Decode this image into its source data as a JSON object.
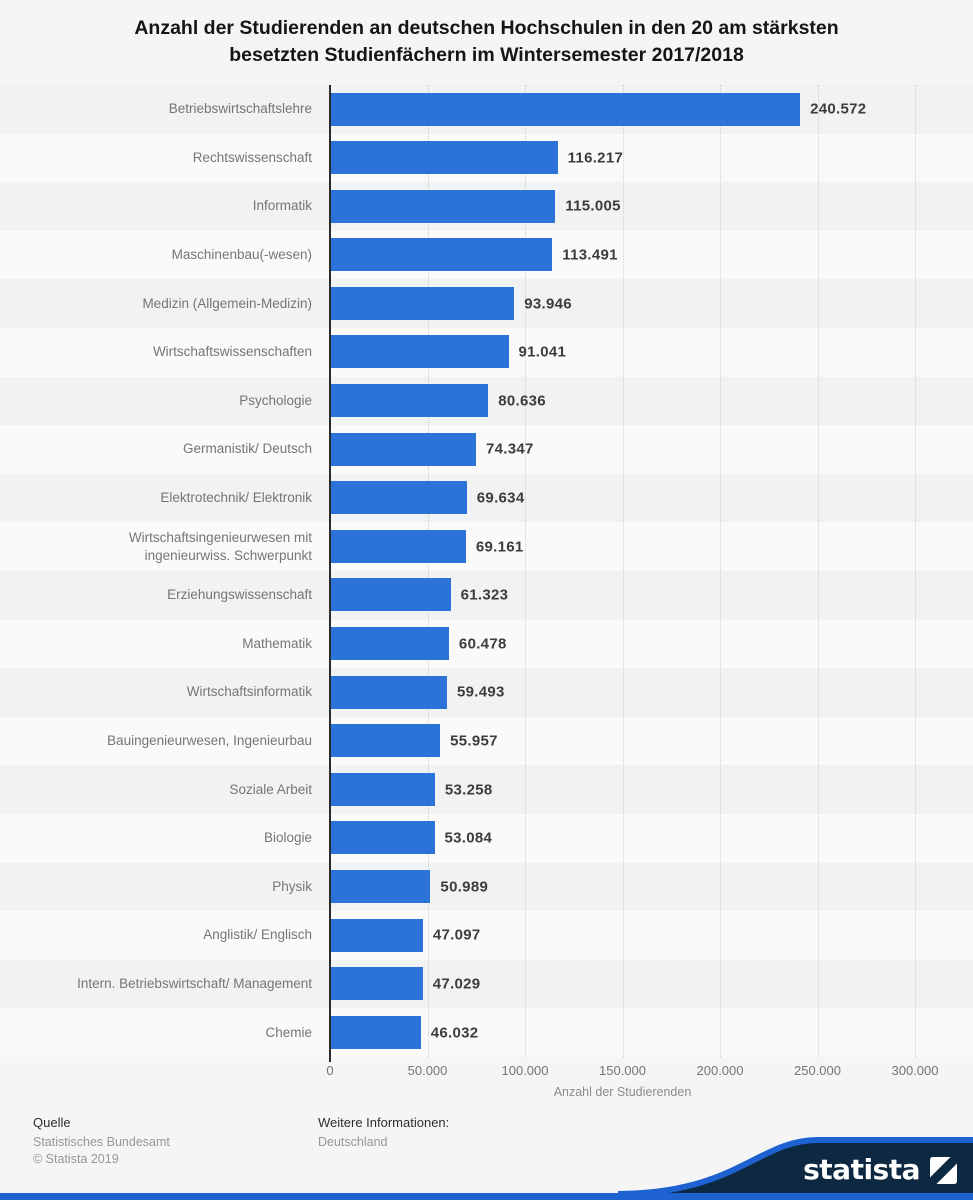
{
  "title": "Anzahl der Studierenden an deutschen Hochschulen in den 20 am stärksten\nbesetzten Studienfächern im Wintersemester 2017/2018",
  "chart_data": {
    "type": "bar",
    "orientation": "horizontal",
    "categories": [
      "Betriebswirtschaftslehre",
      "Rechtswissenschaft",
      "Informatik",
      "Maschinenbau(-wesen)",
      "Medizin (Allgemein-Medizin)",
      "Wirtschaftswissenschaften",
      "Psychologie",
      "Germanistik/ Deutsch",
      "Elektrotechnik/ Elektronik",
      "Wirtschaftsingenieurwesen mit\ningenieurwiss. Schwerpunkt",
      "Erziehungswissenschaft",
      "Mathematik",
      "Wirtschaftsinformatik",
      "Bauingenieurwesen, Ingenieurbau",
      "Soziale Arbeit",
      "Biologie",
      "Physik",
      "Anglistik/ Englisch",
      "Intern. Betriebswirtschaft/ Management",
      "Chemie"
    ],
    "values": [
      240572,
      116217,
      115005,
      113491,
      93946,
      91041,
      80636,
      74347,
      69634,
      69161,
      61323,
      60478,
      59493,
      55957,
      53258,
      53084,
      50989,
      47097,
      47029,
      46032
    ],
    "value_labels": [
      "240.572",
      "116.217",
      "115.005",
      "113.491",
      "93.946",
      "91.041",
      "80.636",
      "74.347",
      "69.634",
      "69.161",
      "61.323",
      "60.478",
      "59.493",
      "55.957",
      "53.258",
      "53.084",
      "50.989",
      "47.097",
      "47.029",
      "46.032"
    ],
    "xlabel": "Anzahl der Studierenden",
    "x_ticks": [
      "0",
      "50.000",
      "100.000",
      "150.000",
      "200.000",
      "250.000",
      "300.000"
    ],
    "xlim": [
      0,
      300000
    ],
    "grid": true,
    "legend": false,
    "bar_color": "#2b73d6"
  },
  "footer": {
    "source_title": "Quelle",
    "source_lines": [
      "Statistisches Bundesamt",
      "© Statista 2019"
    ],
    "info_title": "Weitere Informationen:",
    "info_lines": [
      "Deutschland"
    ],
    "brand": "statista"
  },
  "colors": {
    "bar": "#2b73d6",
    "navy": "#0d2942",
    "accent_blue": "#1d62d0",
    "background": "#f5f5f5"
  }
}
